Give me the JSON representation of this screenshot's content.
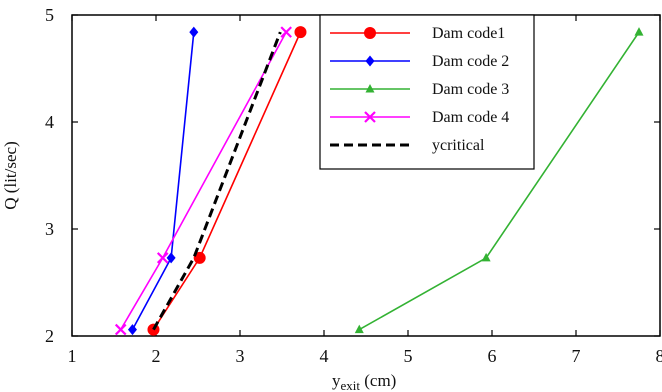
{
  "chart_data": {
    "type": "line",
    "title": "",
    "xlabel": "y",
    "xlabel_sub": "exit",
    "xlabel_unit": " (cm)",
    "ylabel": "Q (lit/sec)",
    "xlim": [
      1,
      8
    ],
    "ylim": [
      2,
      5
    ],
    "x_ticks": [
      1,
      2,
      3,
      4,
      5,
      6,
      7,
      8
    ],
    "y_ticks": [
      2,
      3,
      4,
      5
    ],
    "grid": false,
    "legend_position": "top-right",
    "series": [
      {
        "name": "Dam code1",
        "color": "#ff0000",
        "marker": "circle",
        "dashed": false,
        "x": [
          1.97,
          2.52,
          3.72
        ],
        "y": [
          2.06,
          2.73,
          4.84
        ]
      },
      {
        "name": "Dam code 2",
        "color": "#0000ff",
        "marker": "diamond",
        "dashed": false,
        "x": [
          1.72,
          2.18,
          2.45
        ],
        "y": [
          2.06,
          2.73,
          4.84
        ]
      },
      {
        "name": "Dam code 3",
        "color": "#33b233",
        "marker": "triangle",
        "dashed": false,
        "x": [
          4.42,
          5.93,
          7.75
        ],
        "y": [
          2.06,
          2.73,
          4.84
        ]
      },
      {
        "name": "Dam code 4",
        "color": "#ff00ff",
        "marker": "x",
        "dashed": false,
        "x": [
          1.58,
          2.08,
          3.55
        ],
        "y": [
          2.06,
          2.73,
          4.84
        ]
      },
      {
        "name": "ycritical",
        "color": "#000000",
        "marker": "none",
        "dashed": true,
        "x": [
          1.97,
          2.45,
          3.48
        ],
        "y": [
          2.06,
          2.73,
          4.84
        ]
      }
    ]
  }
}
